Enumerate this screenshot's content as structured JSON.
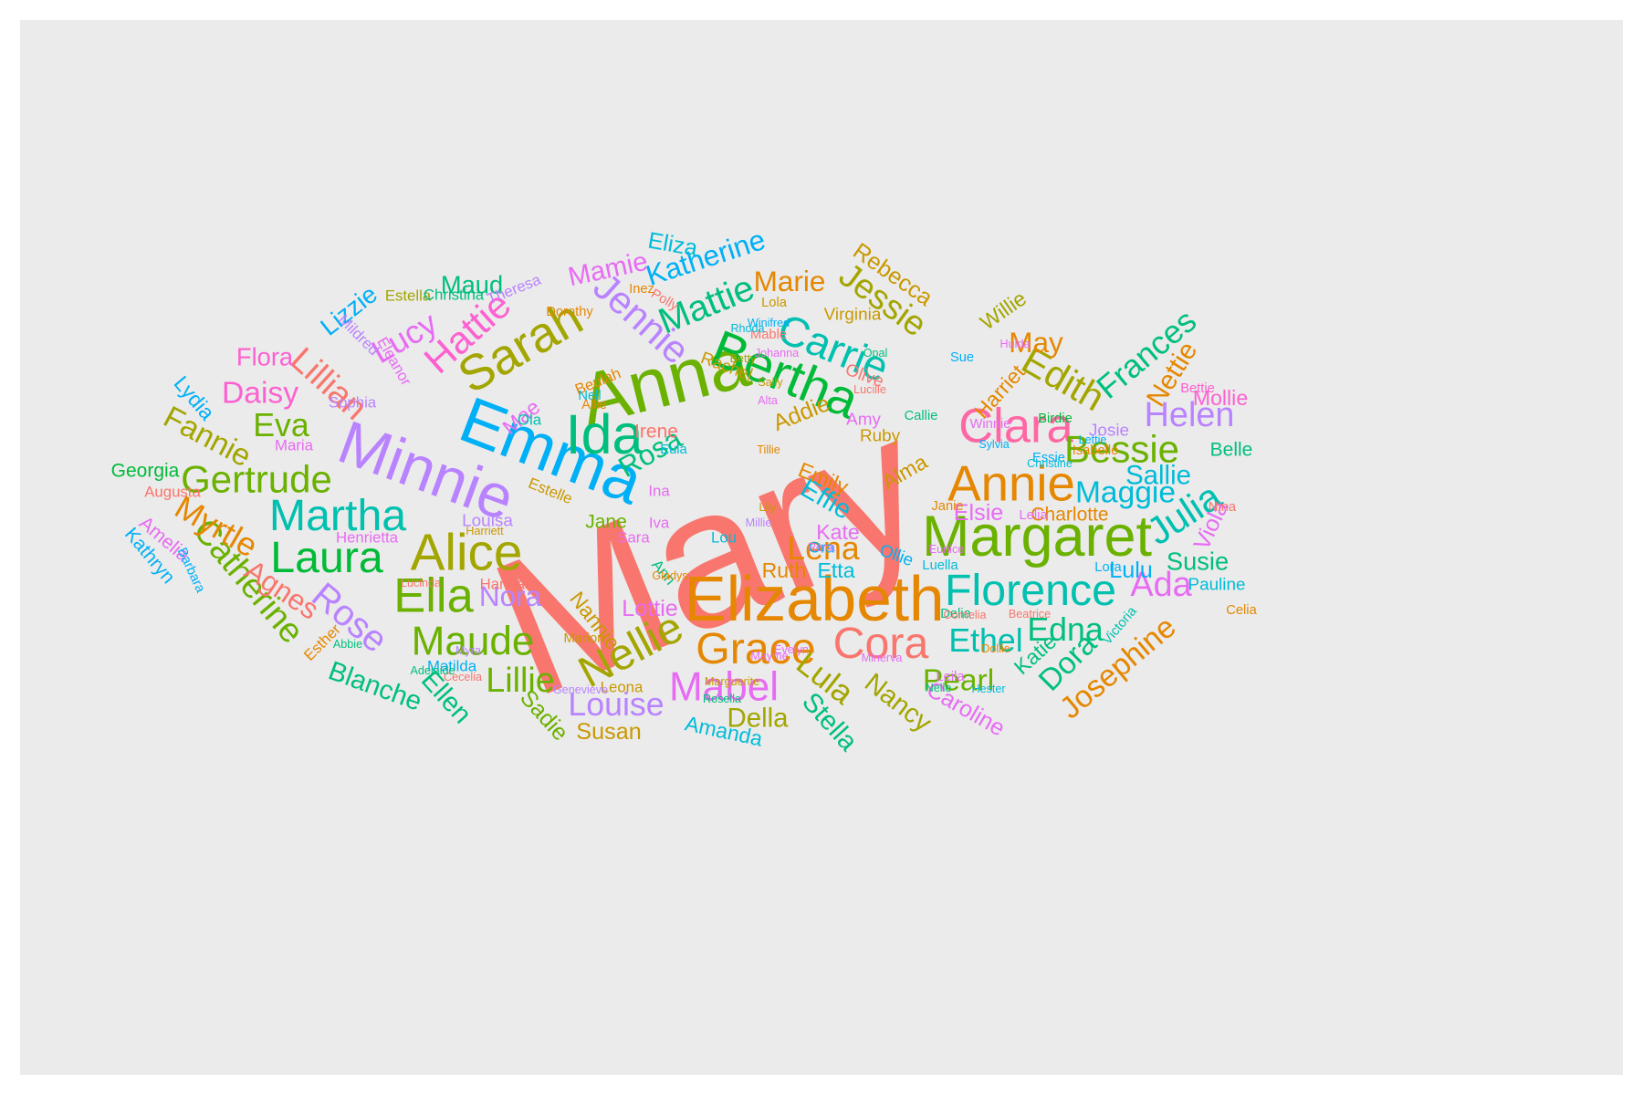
{
  "chart_data": {
    "type": "wordcloud",
    "title": "",
    "panel_background": "#ebebeb",
    "palette": [
      "#f8766d",
      "#e58700",
      "#c99800",
      "#a3a500",
      "#6bb100",
      "#00ba38",
      "#00bf7d",
      "#00c0af",
      "#00bcd8",
      "#00b0f6",
      "#619cff",
      "#b983ff",
      "#e76bf3",
      "#fd61d1",
      "#ff67a4"
    ],
    "words": [
      {
        "text": "Mary",
        "freq": 100,
        "color": "#f8766d"
      },
      {
        "text": "Anna",
        "freq": 38,
        "color": "#6bb100"
      },
      {
        "text": "Emma",
        "freq": 34,
        "color": "#00b0f6"
      },
      {
        "text": "Elizabeth",
        "freq": 33,
        "color": "#e58700"
      },
      {
        "text": "Minnie",
        "freq": 32,
        "color": "#b983ff"
      },
      {
        "text": "Margaret",
        "freq": 30,
        "color": "#6bb100"
      },
      {
        "text": "Ida",
        "freq": 29,
        "color": "#00bf7d"
      },
      {
        "text": "Alice",
        "freq": 27,
        "color": "#a3a500"
      },
      {
        "text": "Bertha",
        "freq": 27,
        "color": "#00ba38"
      },
      {
        "text": "Sarah",
        "freq": 26,
        "color": "#a3a500"
      },
      {
        "text": "Annie",
        "freq": 26,
        "color": "#e58700"
      },
      {
        "text": "Clara",
        "freq": 25,
        "color": "#ff67a4"
      },
      {
        "text": "Ella",
        "freq": 25,
        "color": "#6bb100"
      },
      {
        "text": "Florence",
        "freq": 23,
        "color": "#00c0af"
      },
      {
        "text": "Cora",
        "freq": 23,
        "color": "#f8766d"
      },
      {
        "text": "Martha",
        "freq": 23,
        "color": "#00c0af"
      },
      {
        "text": "Laura",
        "freq": 23,
        "color": "#00ba38"
      },
      {
        "text": "Nellie",
        "freq": 23,
        "color": "#a3a500"
      },
      {
        "text": "Grace",
        "freq": 23,
        "color": "#e58700"
      },
      {
        "text": "Carrie",
        "freq": 22,
        "color": "#00c0af"
      },
      {
        "text": "Maude",
        "freq": 21,
        "color": "#6bb100"
      },
      {
        "text": "Mabel",
        "freq": 21,
        "color": "#e76bf3"
      },
      {
        "text": "Bessie",
        "freq": 20,
        "color": "#6bb100"
      },
      {
        "text": "Jennie",
        "freq": 20,
        "color": "#b983ff"
      },
      {
        "text": "Gertrude",
        "freq": 20,
        "color": "#6bb100"
      },
      {
        "text": "Julia",
        "freq": 20,
        "color": "#00c0af"
      },
      {
        "text": "Hattie",
        "freq": 20,
        "color": "#fd61d1"
      },
      {
        "text": "Edith",
        "freq": 20,
        "color": "#a3a500"
      },
      {
        "text": "Mattie",
        "freq": 19,
        "color": "#00bf7d"
      },
      {
        "text": "Rose",
        "freq": 19,
        "color": "#b983ff"
      },
      {
        "text": "Catherine",
        "freq": 18,
        "color": "#6bb100"
      },
      {
        "text": "Lillian",
        "freq": 18,
        "color": "#f8766d"
      },
      {
        "text": "Ada",
        "freq": 18,
        "color": "#e76bf3"
      },
      {
        "text": "Lillie",
        "freq": 18,
        "color": "#6bb100"
      },
      {
        "text": "Helen",
        "freq": 18,
        "color": "#b983ff"
      },
      {
        "text": "Jessie",
        "freq": 18,
        "color": "#a3a500"
      },
      {
        "text": "Louise",
        "freq": 17,
        "color": "#b983ff"
      },
      {
        "text": "Ethel",
        "freq": 17,
        "color": "#00c0af"
      },
      {
        "text": "Lula",
        "freq": 17,
        "color": "#a3a500"
      },
      {
        "text": "Myrtle",
        "freq": 17,
        "color": "#e58700"
      },
      {
        "text": "Eva",
        "freq": 17,
        "color": "#6bb100"
      },
      {
        "text": "Frances",
        "freq": 17,
        "color": "#00bf7d"
      },
      {
        "text": "Lena",
        "freq": 17,
        "color": "#e58700"
      },
      {
        "text": "Lucy",
        "freq": 17,
        "color": "#e76bf3"
      },
      {
        "text": "Edna",
        "freq": 17,
        "color": "#00bf7d"
      },
      {
        "text": "Maggie",
        "freq": 16,
        "color": "#00bcd8"
      },
      {
        "text": "Pearl",
        "freq": 16,
        "color": "#6bb100"
      },
      {
        "text": "Daisy",
        "freq": 16,
        "color": "#fd61d1"
      },
      {
        "text": "Fannie",
        "freq": 16,
        "color": "#a3a500"
      },
      {
        "text": "Josephine",
        "freq": 16,
        "color": "#e58700"
      },
      {
        "text": "Dora",
        "freq": 16,
        "color": "#00bf7d"
      },
      {
        "text": "Rosa",
        "freq": 15,
        "color": "#00bf7d"
      },
      {
        "text": "Katherine",
        "freq": 15,
        "color": "#00b0f6"
      },
      {
        "text": "Agnes",
        "freq": 15,
        "color": "#f8766d"
      },
      {
        "text": "Marie",
        "freq": 15,
        "color": "#e58700"
      },
      {
        "text": "Nora",
        "freq": 15,
        "color": "#b983ff"
      },
      {
        "text": "May",
        "freq": 15,
        "color": "#e58700"
      },
      {
        "text": "Mamie",
        "freq": 14,
        "color": "#e76bf3"
      },
      {
        "text": "Blanche",
        "freq": 14,
        "color": "#00bf7d"
      },
      {
        "text": "Stella",
        "freq": 14,
        "color": "#00bf7d"
      },
      {
        "text": "Ellen",
        "freq": 14,
        "color": "#00bf7d"
      },
      {
        "text": "Nancy",
        "freq": 14,
        "color": "#a3a500"
      },
      {
        "text": "Effie",
        "freq": 14,
        "color": "#00bcd8"
      },
      {
        "text": "Sallie",
        "freq": 14,
        "color": "#00bcd8"
      },
      {
        "text": "Nettie",
        "freq": 14,
        "color": "#e58700"
      },
      {
        "text": "Della",
        "freq": 14,
        "color": "#a3a500"
      },
      {
        "text": "Lizzie",
        "freq": 13,
        "color": "#00b0f6"
      },
      {
        "text": "Flora",
        "freq": 13,
        "color": "#fd61d1"
      },
      {
        "text": "Susie",
        "freq": 13,
        "color": "#00bf7d"
      },
      {
        "text": "Maud",
        "freq": 13,
        "color": "#00bf7d"
      },
      {
        "text": "Rebecca",
        "freq": 12,
        "color": "#c99800"
      },
      {
        "text": "Viola",
        "freq": 12,
        "color": "#e76bf3"
      },
      {
        "text": "Sadie",
        "freq": 12,
        "color": "#6bb100"
      },
      {
        "text": "Lulu",
        "freq": 12,
        "color": "#00b0f6"
      },
      {
        "text": "Elsie",
        "freq": 12,
        "color": "#e76bf3"
      },
      {
        "text": "Caroline",
        "freq": 12,
        "color": "#e76bf3"
      },
      {
        "text": "Lottie",
        "freq": 12,
        "color": "#e76bf3"
      },
      {
        "text": "Eliza",
        "freq": 12,
        "color": "#00bcd8"
      },
      {
        "text": "Susan",
        "freq": 12,
        "color": "#c99800"
      },
      {
        "text": "Addie",
        "freq": 12,
        "color": "#c99800"
      },
      {
        "text": "Kate",
        "freq": 11,
        "color": "#e76bf3"
      },
      {
        "text": "Etta",
        "freq": 11,
        "color": "#00bcd8"
      },
      {
        "text": "Amanda",
        "freq": 11,
        "color": "#00bcd8"
      },
      {
        "text": "Ruth",
        "freq": 11,
        "color": "#e58700"
      },
      {
        "text": "Alma",
        "freq": 11,
        "color": "#c99800"
      },
      {
        "text": "Emily",
        "freq": 11,
        "color": "#e58700"
      },
      {
        "text": "Lydia",
        "freq": 11,
        "color": "#00b0f6"
      },
      {
        "text": "Mollie",
        "freq": 11,
        "color": "#fd61d1"
      },
      {
        "text": "Harriet",
        "freq": 11,
        "color": "#e58700"
      },
      {
        "text": "Katie",
        "freq": 11,
        "color": "#00bf7d"
      },
      {
        "text": "Mae",
        "freq": 11,
        "color": "#e76bf3"
      },
      {
        "text": "Nannie",
        "freq": 11,
        "color": "#c99800"
      },
      {
        "text": "Willie",
        "freq": 11,
        "color": "#a3a500"
      },
      {
        "text": "Georgia",
        "freq": 10,
        "color": "#00ba38"
      },
      {
        "text": "Amelia",
        "freq": 10,
        "color": "#e76bf3"
      },
      {
        "text": "Kathryn",
        "freq": 10,
        "color": "#00b0f6"
      },
      {
        "text": "Jane",
        "freq": 10,
        "color": "#6bb100"
      },
      {
        "text": "Irene",
        "freq": 10,
        "color": "#f8766d"
      },
      {
        "text": "Charlotte",
        "freq": 10,
        "color": "#e58700"
      },
      {
        "text": "Belle",
        "freq": 10,
        "color": "#00bf7d"
      },
      {
        "text": "Pauline",
        "freq": 9,
        "color": "#00bcd8"
      },
      {
        "text": "Ollie",
        "freq": 9,
        "color": "#00b0f6"
      },
      {
        "text": "Virginia",
        "freq": 9,
        "color": "#c99800"
      },
      {
        "text": "Olive",
        "freq": 9,
        "color": "#f8766d"
      },
      {
        "text": "Rachel",
        "freq": 9,
        "color": "#c99800"
      },
      {
        "text": "Amy",
        "freq": 9,
        "color": "#e76bf3"
      },
      {
        "text": "Ruby",
        "freq": 9,
        "color": "#c99800"
      },
      {
        "text": "Louisa",
        "freq": 9,
        "color": "#b983ff"
      },
      {
        "text": "Josie",
        "freq": 9,
        "color": "#b983ff"
      },
      {
        "text": "Henrietta",
        "freq": 8,
        "color": "#e76bf3"
      },
      {
        "text": "Esther",
        "freq": 8,
        "color": "#e58700"
      },
      {
        "text": "Augusta",
        "freq": 8,
        "color": "#f8766d"
      },
      {
        "text": "Estella",
        "freq": 8,
        "color": "#a3a500"
      },
      {
        "text": "Christina",
        "freq": 8,
        "color": "#00bf7d"
      },
      {
        "text": "Theresa",
        "freq": 8,
        "color": "#b983ff"
      },
      {
        "text": "Mildred",
        "freq": 8,
        "color": "#b983ff"
      },
      {
        "text": "Eleanor",
        "freq": 8,
        "color": "#e76bf3"
      },
      {
        "text": "Sophia",
        "freq": 8,
        "color": "#b983ff"
      },
      {
        "text": "Maria",
        "freq": 8,
        "color": "#e76bf3"
      },
      {
        "text": "Beulah",
        "freq": 8,
        "color": "#e58700"
      },
      {
        "text": "Ola",
        "freq": 8,
        "color": "#00c0af"
      },
      {
        "text": "Estelle",
        "freq": 8,
        "color": "#c99800"
      },
      {
        "text": "Hannah",
        "freq": 8,
        "color": "#f8766d"
      },
      {
        "text": "Sara",
        "freq": 8,
        "color": "#e76bf3"
      },
      {
        "text": "Iva",
        "freq": 8,
        "color": "#e76bf3"
      },
      {
        "text": "Ina",
        "freq": 8,
        "color": "#e76bf3"
      },
      {
        "text": "Lou",
        "freq": 8,
        "color": "#00bcd8"
      },
      {
        "text": "Ann",
        "freq": 8,
        "color": "#00bf7d"
      },
      {
        "text": "Leona",
        "freq": 8,
        "color": "#c99800"
      },
      {
        "text": "Matilda",
        "freq": 8,
        "color": "#00b0f6"
      },
      {
        "text": "Marion",
        "freq": 7,
        "color": "#c99800"
      },
      {
        "text": "Celia",
        "freq": 7,
        "color": "#e58700"
      },
      {
        "text": "Barbara",
        "freq": 7,
        "color": "#00b0f6"
      },
      {
        "text": "Victoria",
        "freq": 7,
        "color": "#00c0af"
      },
      {
        "text": "Isabelle",
        "freq": 7,
        "color": "#e58700"
      },
      {
        "text": "Birdie",
        "freq": 7,
        "color": "#00ba38"
      },
      {
        "text": "Essie",
        "freq": 7,
        "color": "#00b0f6"
      },
      {
        "text": "Winnie",
        "freq": 7,
        "color": "#e76bf3"
      },
      {
        "text": "Lora",
        "freq": 7,
        "color": "#00b0f6"
      },
      {
        "text": "Delia",
        "freq": 7,
        "color": "#00bf7d"
      },
      {
        "text": "Luella",
        "freq": 7,
        "color": "#00bcd8"
      },
      {
        "text": "Leila",
        "freq": 7,
        "color": "#e76bf3"
      },
      {
        "text": "Lelia",
        "freq": 7,
        "color": "#e76bf3"
      },
      {
        "text": "Nina",
        "freq": 7,
        "color": "#f8766d"
      },
      {
        "text": "Bettie",
        "freq": 7,
        "color": "#fd61d1"
      },
      {
        "text": "Janie",
        "freq": 7,
        "color": "#e58700"
      },
      {
        "text": "Sue",
        "freq": 7,
        "color": "#00b0f6"
      },
      {
        "text": "Callie",
        "freq": 7,
        "color": "#00bf7d"
      },
      {
        "text": "Nell",
        "freq": 7,
        "color": "#00bcd8"
      },
      {
        "text": "Allie",
        "freq": 7,
        "color": "#e58700"
      },
      {
        "text": "Eula",
        "freq": 7,
        "color": "#00bcd8"
      },
      {
        "text": "Mable",
        "freq": 7,
        "color": "#f8766d"
      },
      {
        "text": "Lola",
        "freq": 7,
        "color": "#c99800"
      },
      {
        "text": "Dorothy",
        "freq": 7,
        "color": "#e58700"
      },
      {
        "text": "Inez",
        "freq": 7,
        "color": "#e58700"
      },
      {
        "text": "Polly",
        "freq": 7,
        "color": "#f8766d"
      },
      {
        "text": "Rhoda",
        "freq": 6,
        "color": "#00bcd8"
      },
      {
        "text": "Johanna",
        "freq": 6,
        "color": "#e76bf3"
      },
      {
        "text": "Winifred",
        "freq": 6,
        "color": "#00b0f6"
      },
      {
        "text": "Sally",
        "freq": 6,
        "color": "#c99800"
      },
      {
        "text": "Alta",
        "freq": 6,
        "color": "#e76bf3"
      },
      {
        "text": "Tillie",
        "freq": 6,
        "color": "#e58700"
      },
      {
        "text": "Lily",
        "freq": 6,
        "color": "#c99800"
      },
      {
        "text": "Millie",
        "freq": 6,
        "color": "#b983ff"
      },
      {
        "text": "Evelyn",
        "freq": 6,
        "color": "#e76bf3"
      },
      {
        "text": "Dollie",
        "freq": 6,
        "color": "#e58700"
      },
      {
        "text": "Beatrice",
        "freq": 6,
        "color": "#f8766d"
      },
      {
        "text": "Betty",
        "freq": 6,
        "color": "#a3a500"
      },
      {
        "text": "Sylvia",
        "freq": 6,
        "color": "#00b0f6"
      },
      {
        "text": "Eunice",
        "freq": 6,
        "color": "#e76bf3"
      },
      {
        "text": "Abbie",
        "freq": 6,
        "color": "#00bf7d"
      },
      {
        "text": "Lucinda",
        "freq": 6,
        "color": "#f8766d"
      },
      {
        "text": "Myra",
        "freq": 6,
        "color": "#b983ff"
      },
      {
        "text": "Cecelia",
        "freq": 6,
        "color": "#f8766d"
      },
      {
        "text": "Adelaide",
        "freq": 6,
        "color": "#00bf7d"
      },
      {
        "text": "Genevieve",
        "freq": 6,
        "color": "#b983ff"
      },
      {
        "text": "Marguerite",
        "freq": 6,
        "color": "#c99800"
      },
      {
        "text": "Mayme",
        "freq": 6,
        "color": "#e76bf3"
      },
      {
        "text": "Rosella",
        "freq": 6,
        "color": "#00bf7d"
      },
      {
        "text": "Hester",
        "freq": 6,
        "color": "#00bcd8"
      },
      {
        "text": "Cornelia",
        "freq": 6,
        "color": "#f8766d"
      },
      {
        "text": "Nelle",
        "freq": 6,
        "color": "#00bf7d"
      },
      {
        "text": "Christine",
        "freq": 6,
        "color": "#00bcd8"
      },
      {
        "text": "Gladys",
        "freq": 6,
        "color": "#e58700"
      },
      {
        "text": "Lettie",
        "freq": 6,
        "color": "#00b0f6"
      },
      {
        "text": "Harriett",
        "freq": 6,
        "color": "#c99800"
      },
      {
        "text": "Hulda",
        "freq": 6,
        "color": "#e76bf3"
      },
      {
        "text": "Opal",
        "freq": 6,
        "color": "#00bf7d"
      },
      {
        "text": "Lucille",
        "freq": 6,
        "color": "#f8766d"
      },
      {
        "text": "Minerva",
        "freq": 6,
        "color": "#e76bf3"
      },
      {
        "text": "Ora",
        "freq": 8,
        "color": "#00b0f6"
      },
      {
        "text": "Rena",
        "freq": 6,
        "color": "#e76bf3"
      }
    ]
  }
}
